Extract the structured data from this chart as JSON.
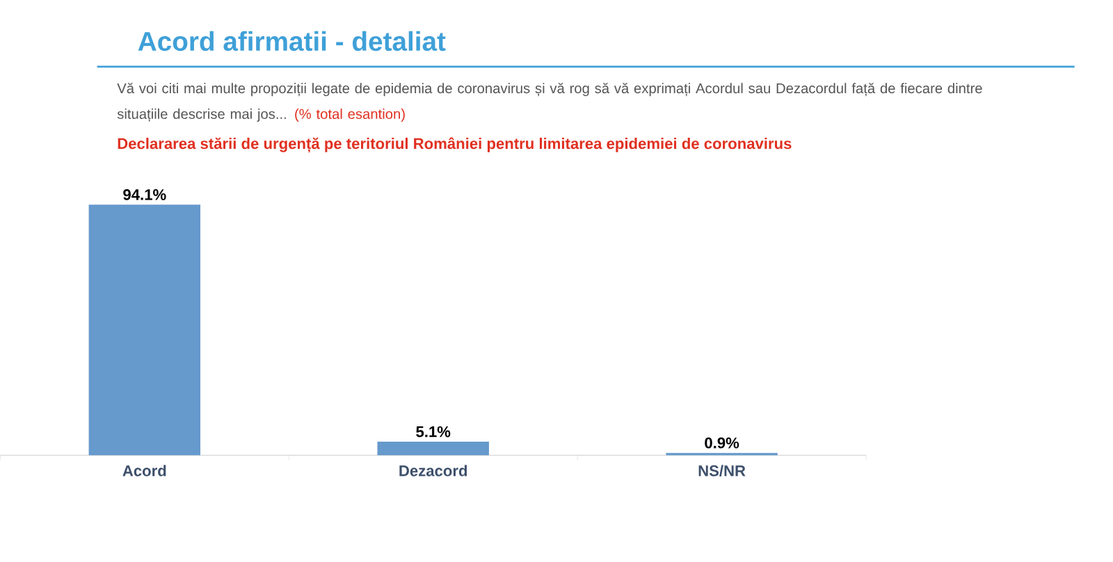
{
  "chart_data": {
    "type": "bar",
    "title": "Acord afirmatii - detaliat",
    "subtitle": "Vă voi citi mai multe propoziții legate de epidemia de coronavirus și vă rog să vă exprimați Acordul sau Dezacordul față de fiecare dintre situațiile descrise mai jos...",
    "annotations": [
      "(% total esantion)",
      "Declararea stării de urgență pe teritoriul României pentru limitarea epidemiei de coronavirus"
    ],
    "categories": [
      "Acord",
      "Dezacord",
      "NS/NR"
    ],
    "values": [
      94.1,
      5.1,
      0.9
    ],
    "value_labels": [
      "94.1%",
      "5.1%",
      "0.9%"
    ],
    "color": "#6699cc"
  }
}
